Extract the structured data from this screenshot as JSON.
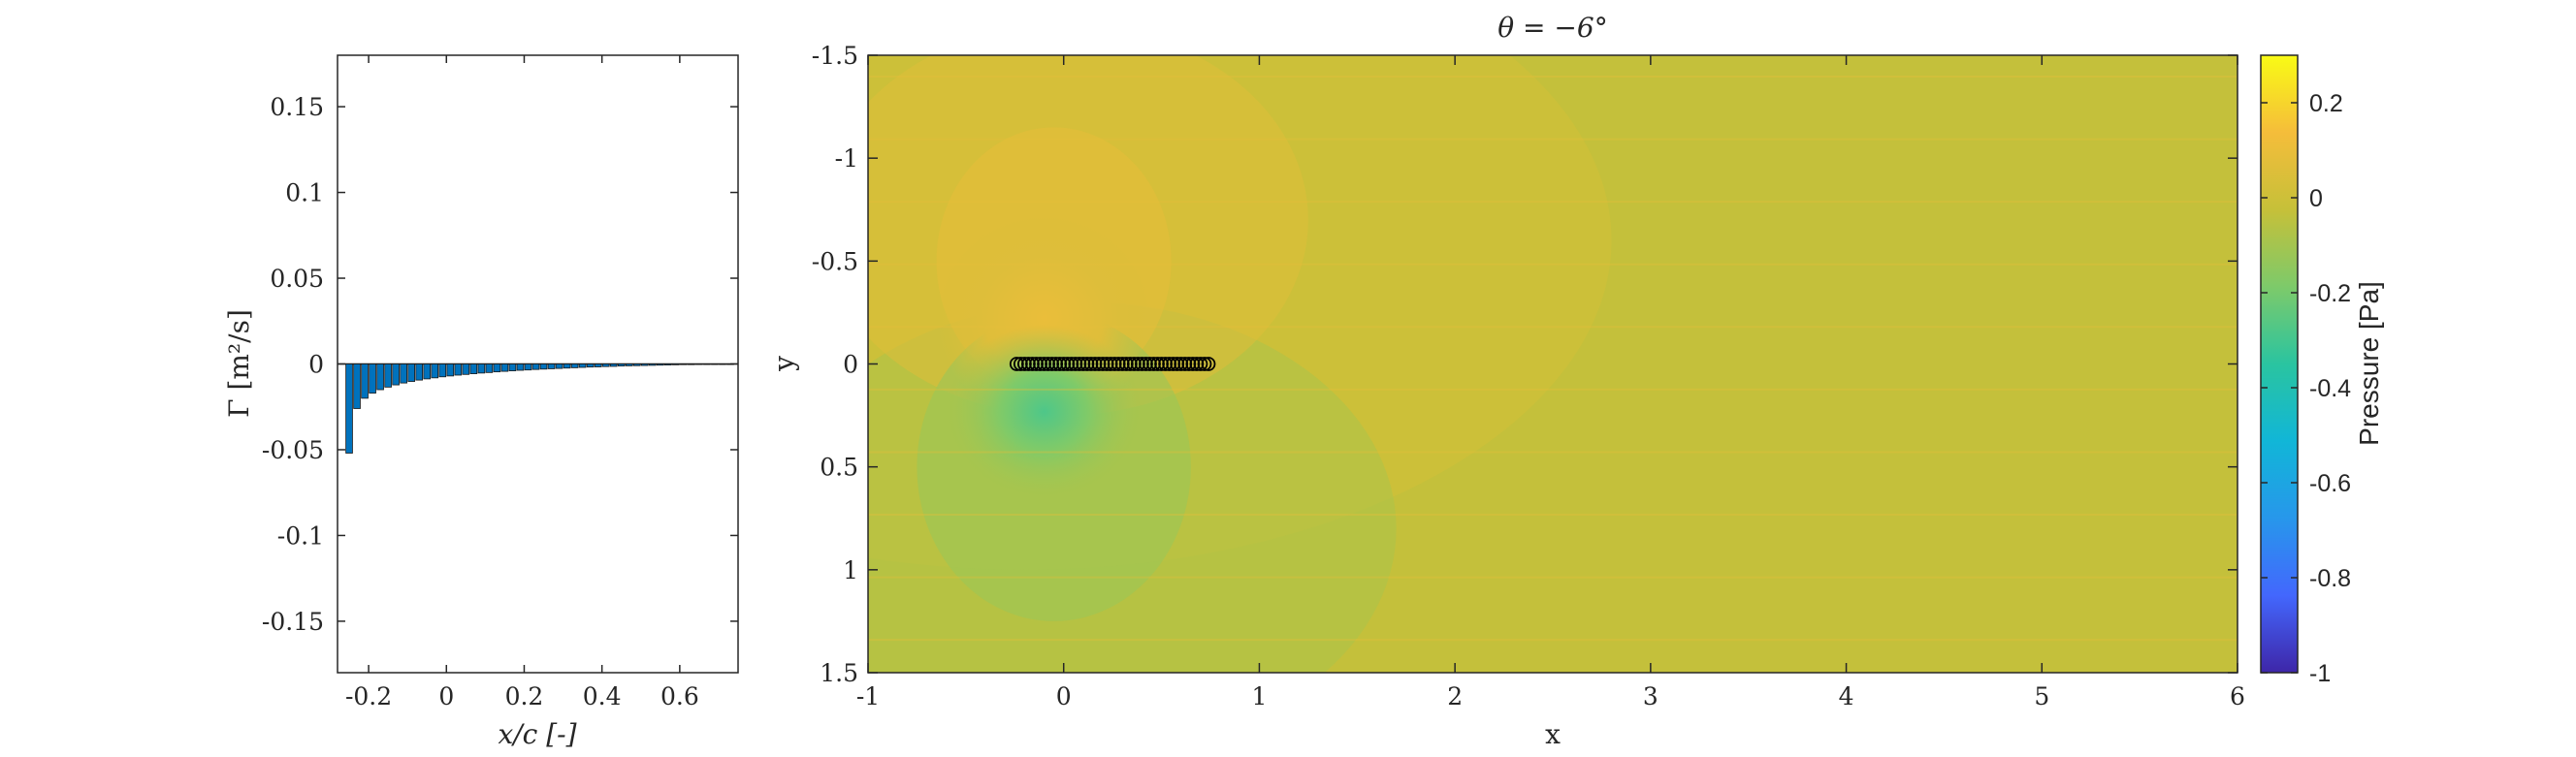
{
  "chart_data": [
    {
      "type": "bar",
      "xlabel": "x/c [-]",
      "ylabel": "Γ [m²/s]",
      "xlim": [
        -0.28,
        0.75
      ],
      "ylim": [
        -0.18,
        0.18
      ],
      "xticks": [
        "-0.2",
        "0",
        "0.2",
        "0.4",
        "0.6"
      ],
      "xtick_values": [
        -0.2,
        0,
        0.2,
        0.4,
        0.6
      ],
      "yticks": [
        "0.15",
        "0.1",
        "0.05",
        "0",
        "-0.05",
        "-0.1",
        "-0.15"
      ],
      "ytick_values": [
        0.15,
        0.1,
        0.05,
        0,
        -0.05,
        -0.1,
        -0.15
      ],
      "bar_color": "#0072bd",
      "x": [
        -0.25,
        -0.23,
        -0.21,
        -0.19,
        -0.17,
        -0.15,
        -0.13,
        -0.11,
        -0.09,
        -0.07,
        -0.05,
        -0.03,
        -0.01,
        0.01,
        0.03,
        0.05,
        0.07,
        0.09,
        0.11,
        0.13,
        0.15,
        0.17,
        0.19,
        0.21,
        0.23,
        0.25,
        0.27,
        0.29,
        0.31,
        0.33,
        0.35,
        0.37,
        0.39,
        0.41,
        0.43,
        0.45,
        0.47,
        0.49,
        0.51,
        0.53,
        0.55,
        0.57,
        0.59,
        0.61,
        0.63,
        0.65,
        0.67,
        0.69,
        0.71,
        0.73
      ],
      "values": [
        -0.052,
        -0.026,
        -0.02,
        -0.017,
        -0.015,
        -0.0135,
        -0.0122,
        -0.0111,
        -0.0102,
        -0.0094,
        -0.0087,
        -0.0081,
        -0.0075,
        -0.007,
        -0.0065,
        -0.0061,
        -0.0057,
        -0.0053,
        -0.005,
        -0.0046,
        -0.0043,
        -0.004,
        -0.0037,
        -0.0035,
        -0.0032,
        -0.003,
        -0.0028,
        -0.0026,
        -0.0024,
        -0.0022,
        -0.002,
        -0.0018,
        -0.0017,
        -0.0015,
        -0.0014,
        -0.0012,
        -0.0011,
        -0.001,
        -0.0009,
        -0.0008,
        -0.0007,
        -0.0006,
        -0.0005,
        -0.0004,
        -0.0004,
        -0.0003,
        -0.0002,
        -0.0002,
        -0.0001,
        -0.0001
      ]
    },
    {
      "type": "heatmap",
      "title": "θ = −6°",
      "xlabel": "x",
      "ylabel": "y",
      "xlim": [
        -1,
        6
      ],
      "ylim": [
        -1.5,
        1.5
      ],
      "y_reversed": true,
      "xticks": [
        "-1",
        "0",
        "1",
        "2",
        "3",
        "4",
        "5",
        "6"
      ],
      "xtick_values": [
        -1,
        0,
        1,
        2,
        3,
        4,
        5,
        6
      ],
      "yticks": [
        "-1.5",
        "-1",
        "-0.5",
        "0",
        "0.5",
        "1",
        "1.5"
      ],
      "ytick_values": [
        -1.5,
        -1,
        -0.5,
        0,
        0.5,
        1,
        1.5
      ],
      "colormap": "parula",
      "colorbar": {
        "label": "Pressure [Pa]",
        "limits": [
          -1,
          0.3
        ],
        "ticks": [
          "0.2",
          "0",
          "-0.2",
          "-0.4",
          "-0.6",
          "-0.8",
          "-1"
        ],
        "tick_values": [
          0.2,
          0,
          -0.2,
          -0.4,
          -0.6,
          -0.8,
          -1
        ],
        "stops": [
          "#3e26a8",
          "#4367fd",
          "#2797eb",
          "#11b6d7",
          "#2ac4a0",
          "#7dca6a",
          "#c6c039",
          "#f5bd3a",
          "#f9fb15"
        ]
      },
      "background_pressure": -0.03,
      "features": [
        {
          "name": "suction-peak",
          "x": -0.1,
          "y": 0.25,
          "value": -0.28
        },
        {
          "name": "pressure-peak",
          "x": -0.1,
          "y": -0.25,
          "value": 0.1
        }
      ],
      "plate": {
        "x_start": -0.25,
        "x_end": 0.75,
        "y": 0,
        "panels": 50,
        "marker_color": "#000000"
      }
    }
  ]
}
